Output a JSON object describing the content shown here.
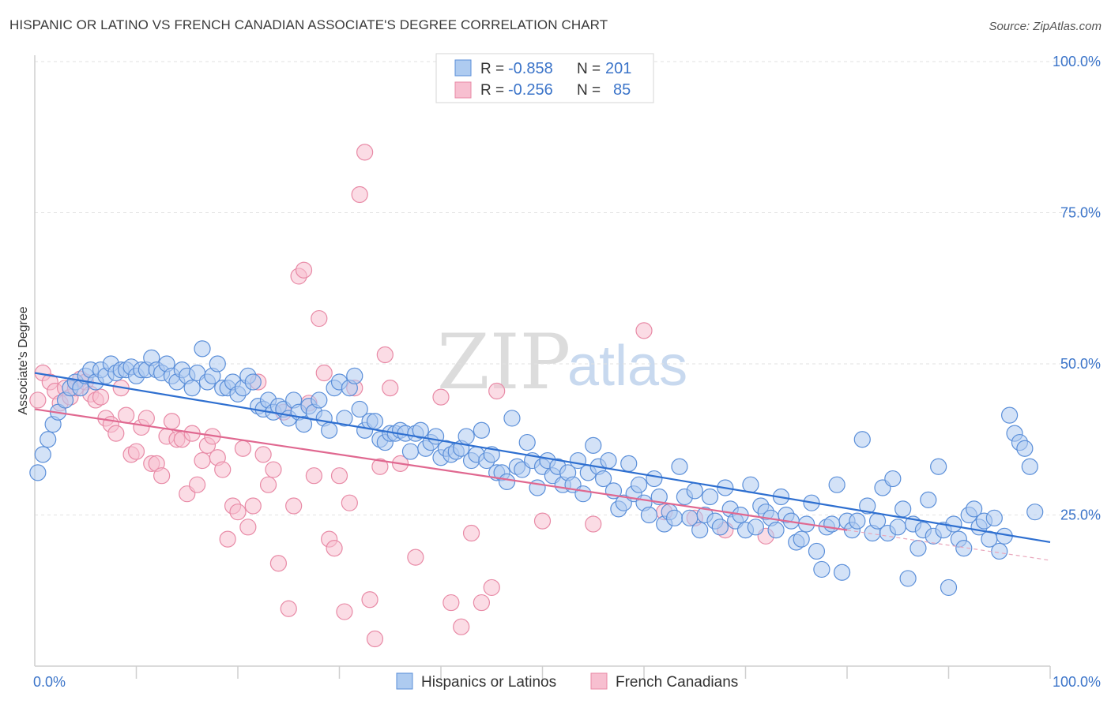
{
  "title": "HISPANIC OR LATINO VS FRENCH CANADIAN ASSOCIATE'S DEGREE CORRELATION CHART",
  "source": "Source: ZipAtlas.com",
  "watermark": {
    "zip": "ZIP",
    "atlas": "atlas"
  },
  "chart_data": {
    "type": "scatter",
    "title": "HISPANIC OR LATINO VS FRENCH CANADIAN ASSOCIATE'S DEGREE CORRELATION CHART",
    "xlabel": "",
    "ylabel": "Associate's Degree",
    "xlim": [
      0,
      100
    ],
    "ylim": [
      0,
      100
    ],
    "x_tick_labels": [
      "0.0%",
      "100.0%"
    ],
    "y_ticks": [
      25,
      50,
      75,
      100
    ],
    "y_tick_labels": [
      "25.0%",
      "50.0%",
      "75.0%",
      "100.0%"
    ],
    "grid": "horizontal dashed",
    "legend_position": "top-center",
    "colors": {
      "blue": "#5b8fd9",
      "blue_fill": "#aecbf0",
      "blue_line": "#2e6fd0",
      "pink": "#e88aa6",
      "pink_fill": "#f7bfd0",
      "pink_line": "#e06890"
    },
    "stats": [
      {
        "name": "Hispanics or Latinos",
        "r_label": "R =",
        "r": "-0.858",
        "n_label": "N =",
        "n": "201"
      },
      {
        "name": "French Canadians",
        "r_label": "R =",
        "r": "-0.256",
        "n_label": "N =",
        "n": "85"
      }
    ],
    "series": [
      {
        "name": "Hispanics or Latinos",
        "trend": {
          "x0": 0,
          "y0": 48.5,
          "x1": 100,
          "y1": 20.5
        },
        "points": [
          [
            0.3,
            32
          ],
          [
            0.8,
            35
          ],
          [
            1.3,
            37.5
          ],
          [
            1.8,
            40
          ],
          [
            2.3,
            42
          ],
          [
            3,
            44
          ],
          [
            3.5,
            46
          ],
          [
            4,
            47
          ],
          [
            4.5,
            46
          ],
          [
            5,
            48
          ],
          [
            5.5,
            49
          ],
          [
            6,
            47
          ],
          [
            6.5,
            49
          ],
          [
            7,
            48
          ],
          [
            7.5,
            50
          ],
          [
            8,
            48.5
          ],
          [
            8.5,
            49
          ],
          [
            9,
            49
          ],
          [
            9.5,
            49.5
          ],
          [
            10,
            48
          ],
          [
            10.5,
            49
          ],
          [
            11,
            49
          ],
          [
            11.5,
            51
          ],
          [
            12,
            49
          ],
          [
            12.5,
            48.5
          ],
          [
            13,
            50
          ],
          [
            13.5,
            48
          ],
          [
            14,
            47
          ],
          [
            14.5,
            49
          ],
          [
            15,
            48
          ],
          [
            15.5,
            46
          ],
          [
            16,
            48.5
          ],
          [
            16.5,
            52.5
          ],
          [
            17,
            47
          ],
          [
            17.5,
            48
          ],
          [
            18,
            50
          ],
          [
            18.5,
            46
          ],
          [
            19,
            46
          ],
          [
            19.5,
            47
          ],
          [
            20,
            45
          ],
          [
            20.5,
            46
          ],
          [
            21,
            48
          ],
          [
            21.5,
            47
          ],
          [
            22,
            43
          ],
          [
            22.5,
            42.5
          ],
          [
            23,
            44
          ],
          [
            23.5,
            42
          ],
          [
            24,
            43
          ],
          [
            24.5,
            42.5
          ],
          [
            25,
            41
          ],
          [
            25.5,
            44
          ],
          [
            26,
            42
          ],
          [
            26.5,
            40
          ],
          [
            27,
            43
          ],
          [
            27.5,
            42
          ],
          [
            28,
            44
          ],
          [
            28.5,
            41
          ],
          [
            29,
            39
          ],
          [
            29.5,
            46
          ],
          [
            30,
            47
          ],
          [
            30.5,
            41
          ],
          [
            31,
            46
          ],
          [
            31.5,
            48
          ],
          [
            32,
            42.5
          ],
          [
            32.5,
            39
          ],
          [
            33,
            40.5
          ],
          [
            33.5,
            40.5
          ],
          [
            34,
            37.5
          ],
          [
            34.5,
            37
          ],
          [
            35,
            38.5
          ],
          [
            35.5,
            38.5
          ],
          [
            36,
            39
          ],
          [
            36.5,
            38.5
          ],
          [
            37,
            35.5
          ],
          [
            37.5,
            38.5
          ],
          [
            38,
            39
          ],
          [
            38.5,
            36
          ],
          [
            39,
            37
          ],
          [
            39.5,
            38
          ],
          [
            40,
            34.5
          ],
          [
            40.5,
            36
          ],
          [
            41,
            35
          ],
          [
            41.5,
            35.5
          ],
          [
            42,
            36
          ],
          [
            42.5,
            38
          ],
          [
            43,
            34
          ],
          [
            43.5,
            35
          ],
          [
            44,
            39
          ],
          [
            44.5,
            34
          ],
          [
            45,
            35
          ],
          [
            45.5,
            32
          ],
          [
            46,
            32
          ],
          [
            46.5,
            30.5
          ],
          [
            47,
            41
          ],
          [
            47.5,
            33
          ],
          [
            48,
            32.5
          ],
          [
            48.5,
            37
          ],
          [
            49,
            34
          ],
          [
            49.5,
            29.5
          ],
          [
            50,
            33
          ],
          [
            50.5,
            34
          ],
          [
            51,
            31.5
          ],
          [
            51.5,
            33
          ],
          [
            52,
            30
          ],
          [
            52.5,
            32
          ],
          [
            53,
            30
          ],
          [
            53.5,
            34
          ],
          [
            54,
            28.5
          ],
          [
            54.5,
            32
          ],
          [
            55,
            36.5
          ],
          [
            55.5,
            33
          ],
          [
            56,
            31
          ],
          [
            56.5,
            34
          ],
          [
            57,
            29
          ],
          [
            57.5,
            26
          ],
          [
            58,
            27
          ],
          [
            58.5,
            33.5
          ],
          [
            59,
            28.5
          ],
          [
            59.5,
            30
          ],
          [
            60,
            27
          ],
          [
            60.5,
            25
          ],
          [
            61,
            31
          ],
          [
            61.5,
            28
          ],
          [
            62,
            23.5
          ],
          [
            62.5,
            25.5
          ],
          [
            63,
            24.5
          ],
          [
            63.5,
            33
          ],
          [
            64,
            28
          ],
          [
            64.5,
            24.5
          ],
          [
            65,
            29
          ],
          [
            65.5,
            22.5
          ],
          [
            66,
            25
          ],
          [
            66.5,
            28
          ],
          [
            67,
            24
          ],
          [
            67.5,
            23
          ],
          [
            68,
            29.5
          ],
          [
            68.5,
            26
          ],
          [
            69,
            24
          ],
          [
            69.5,
            25
          ],
          [
            70,
            22.5
          ],
          [
            70.5,
            30
          ],
          [
            71,
            23
          ],
          [
            71.5,
            26.5
          ],
          [
            72,
            25.5
          ],
          [
            72.5,
            24.5
          ],
          [
            73,
            22.5
          ],
          [
            73.5,
            28
          ],
          [
            74,
            25
          ],
          [
            74.5,
            24
          ],
          [
            75,
            20.5
          ],
          [
            75.5,
            21
          ],
          [
            76,
            23.5
          ],
          [
            76.5,
            27
          ],
          [
            77,
            19
          ],
          [
            77.5,
            16
          ],
          [
            78,
            23
          ],
          [
            78.5,
            23.5
          ],
          [
            79,
            30
          ],
          [
            79.5,
            15.5
          ],
          [
            80,
            24
          ],
          [
            80.5,
            22.5
          ],
          [
            81,
            24
          ],
          [
            81.5,
            37.5
          ],
          [
            82,
            26.5
          ],
          [
            82.5,
            22
          ],
          [
            83,
            24
          ],
          [
            83.5,
            29.5
          ],
          [
            84,
            22
          ],
          [
            84.5,
            31
          ],
          [
            85,
            23
          ],
          [
            85.5,
            26
          ],
          [
            86,
            14.5
          ],
          [
            86.5,
            23.5
          ],
          [
            87,
            19.5
          ],
          [
            87.5,
            22.5
          ],
          [
            88,
            27.5
          ],
          [
            88.5,
            21.5
          ],
          [
            89,
            33
          ],
          [
            89.5,
            22.5
          ],
          [
            90,
            13
          ],
          [
            90.5,
            23.5
          ],
          [
            91,
            21
          ],
          [
            91.5,
            19.5
          ],
          [
            92,
            25
          ],
          [
            92.5,
            26
          ],
          [
            93,
            23
          ],
          [
            93.5,
            24
          ],
          [
            94,
            21
          ],
          [
            94.5,
            24.5
          ],
          [
            95,
            19
          ],
          [
            95.5,
            21.5
          ],
          [
            96,
            41.5
          ],
          [
            96.5,
            38.5
          ],
          [
            97,
            37
          ],
          [
            97.5,
            36
          ],
          [
            98,
            33
          ],
          [
            98.5,
            25.5
          ]
        ]
      },
      {
        "name": "French Canadians",
        "trend": {
          "x0": 0,
          "y0": 42.5,
          "x1": 80,
          "y1": 22.5
        },
        "points": [
          [
            0.3,
            44
          ],
          [
            0.8,
            48.5
          ],
          [
            1.5,
            47
          ],
          [
            2,
            45.5
          ],
          [
            2.5,
            43.5
          ],
          [
            3,
            46
          ],
          [
            3.5,
            44.5
          ],
          [
            4,
            46
          ],
          [
            4.5,
            47.5
          ],
          [
            5,
            47
          ],
          [
            5.5,
            45
          ],
          [
            6,
            44
          ],
          [
            6.5,
            44.5
          ],
          [
            7,
            41
          ],
          [
            7.5,
            40
          ],
          [
            8,
            38.5
          ],
          [
            8.5,
            46
          ],
          [
            9,
            41.5
          ],
          [
            9.5,
            35
          ],
          [
            10,
            35.5
          ],
          [
            10.5,
            39.5
          ],
          [
            11,
            41
          ],
          [
            11.5,
            33.5
          ],
          [
            12,
            33.5
          ],
          [
            12.5,
            31.5
          ],
          [
            13,
            38
          ],
          [
            13.5,
            40.5
          ],
          [
            14,
            37.5
          ],
          [
            14.5,
            37.5
          ],
          [
            15,
            28.5
          ],
          [
            15.5,
            38.5
          ],
          [
            16,
            30
          ],
          [
            16.5,
            34
          ],
          [
            17,
            36.5
          ],
          [
            17.5,
            38
          ],
          [
            18,
            34.5
          ],
          [
            18.5,
            32.5
          ],
          [
            19,
            21
          ],
          [
            19.5,
            26.5
          ],
          [
            20,
            25.5
          ],
          [
            20.5,
            36
          ],
          [
            21,
            23
          ],
          [
            21.5,
            26.5
          ],
          [
            22,
            47
          ],
          [
            22.5,
            35
          ],
          [
            23,
            30
          ],
          [
            23.5,
            32.5
          ],
          [
            24,
            17
          ],
          [
            24.5,
            42
          ],
          [
            25,
            9.5
          ],
          [
            25.5,
            26.5
          ],
          [
            26,
            64.5
          ],
          [
            26.5,
            65.5
          ],
          [
            27,
            43.5
          ],
          [
            27.5,
            31.5
          ],
          [
            28,
            57.5
          ],
          [
            28.5,
            48.5
          ],
          [
            29,
            21
          ],
          [
            29.5,
            19.5
          ],
          [
            30,
            31.5
          ],
          [
            30.5,
            9
          ],
          [
            31,
            27
          ],
          [
            31.5,
            46
          ],
          [
            32,
            78
          ],
          [
            32.5,
            85
          ],
          [
            33,
            11
          ],
          [
            33.5,
            4.5
          ],
          [
            34,
            33
          ],
          [
            34.5,
            51.5
          ],
          [
            35,
            46
          ],
          [
            36,
            33.5
          ],
          [
            37.5,
            18
          ],
          [
            40,
            44.5
          ],
          [
            41,
            10.5
          ],
          [
            42,
            6.5
          ],
          [
            43,
            22
          ],
          [
            44,
            10.5
          ],
          [
            45,
            13
          ],
          [
            45.5,
            45.5
          ],
          [
            50,
            24
          ],
          [
            55,
            23.5
          ],
          [
            60,
            55.5
          ],
          [
            62,
            25.5
          ],
          [
            65,
            24.5
          ],
          [
            68,
            22.5
          ],
          [
            72,
            21.5
          ]
        ]
      }
    ]
  },
  "legend_bottom": {
    "series1": "Hispanics or Latinos",
    "series2": "French Canadians"
  }
}
